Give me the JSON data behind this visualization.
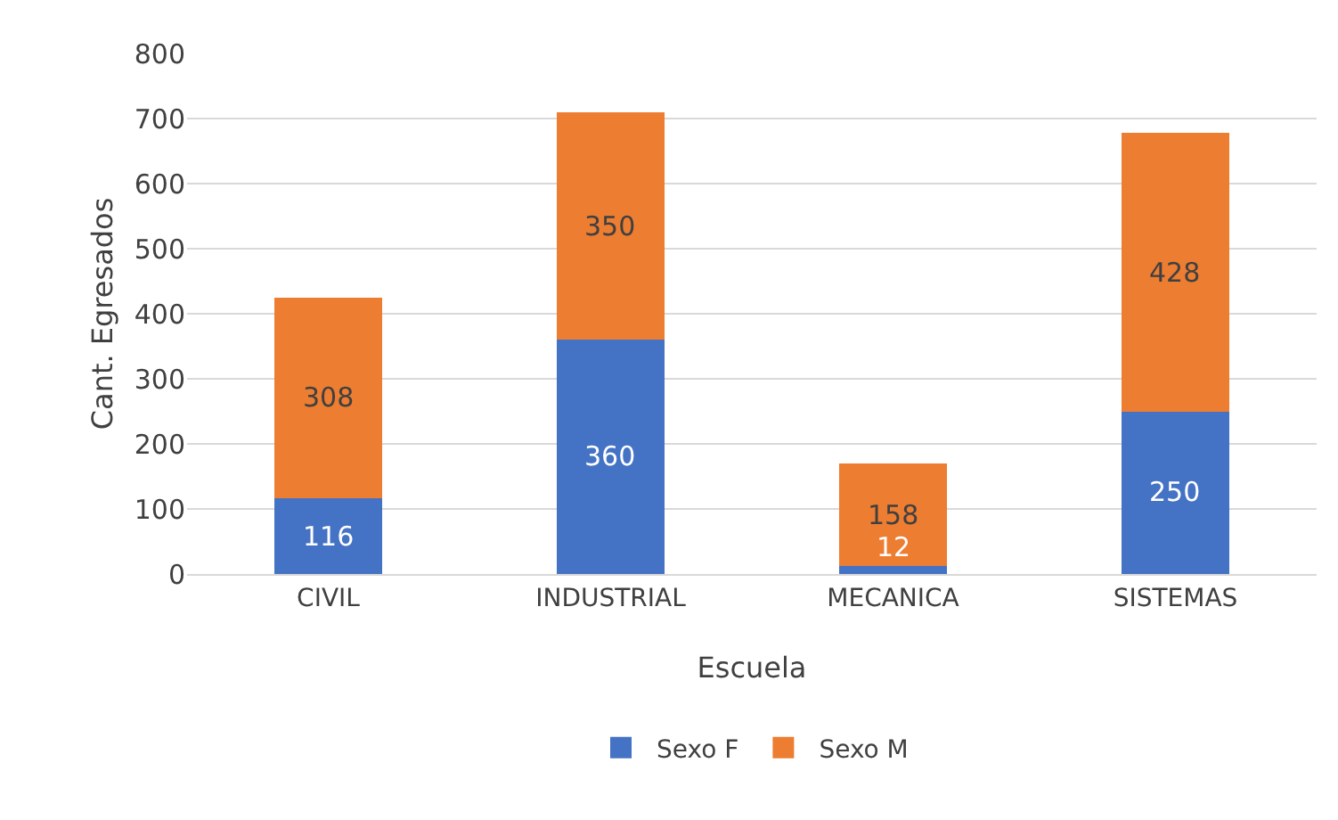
{
  "chart_data": {
    "type": "bar",
    "stacked": true,
    "xlabel": "Escuela",
    "ylabel": "Cant. Egresados",
    "categories": [
      "CIVIL",
      "INDUSTRIAL",
      "MECANICA",
      "SISTEMAS"
    ],
    "series": [
      {
        "name": "Sexo F",
        "color": "#4472c4",
        "values": [
          116,
          360,
          12,
          250
        ]
      },
      {
        "name": "Sexo M",
        "color": "#ed7d31",
        "values": [
          308,
          350,
          158,
          428
        ]
      }
    ],
    "ylim": [
      0,
      800
    ],
    "yticks": [
      0,
      100,
      200,
      300,
      400,
      500,
      600,
      700,
      800
    ],
    "grid": "y",
    "legend": "bottom",
    "data_labels": true
  }
}
